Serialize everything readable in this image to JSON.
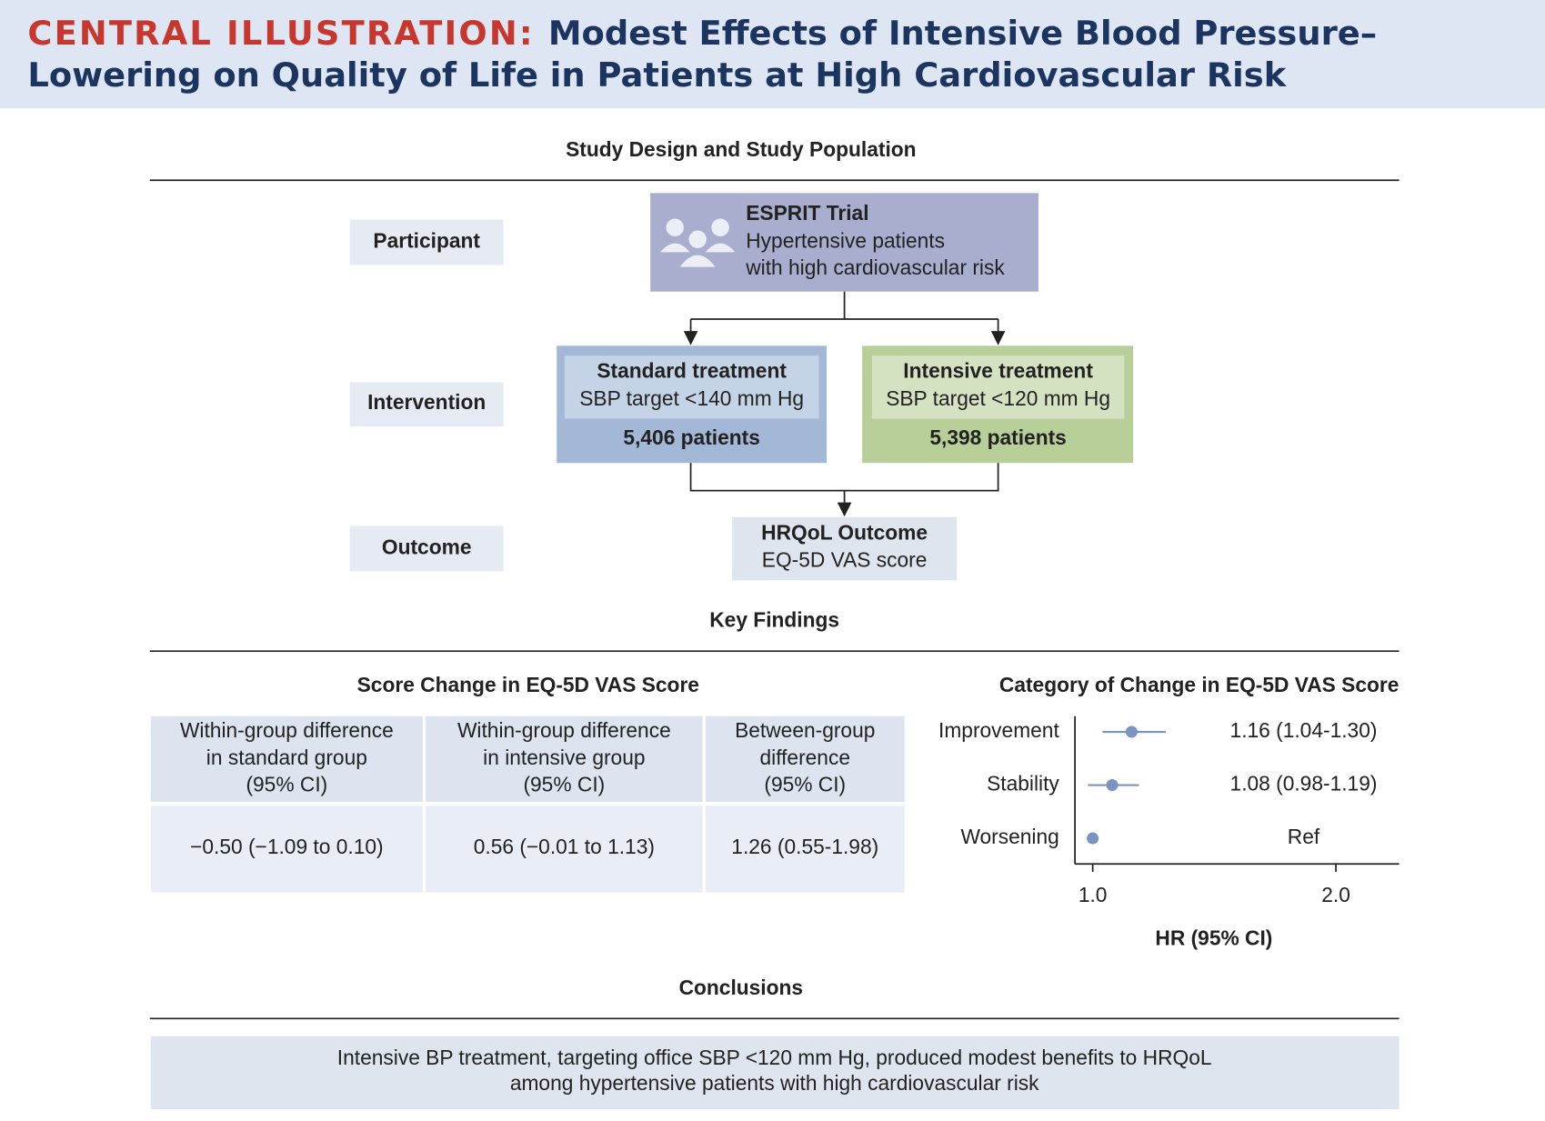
{
  "header": {
    "label": "CENTRAL ILLUSTRATION:",
    "title_lines": [
      "Modest Effects of Intensive Blood Pressure–",
      "Lowering on Quality of Life in Patients at High Cardiovascular Risk"
    ]
  },
  "study_design": {
    "heading": "Study Design and Study Population",
    "rows": [
      "Participant",
      "Intervention",
      "Outcome"
    ],
    "trial": {
      "name": "ESPRIT Trial",
      "lines": [
        "Hypertensive patients",
        "with high cardiovascular risk"
      ]
    },
    "standard": {
      "title": "Standard treatment",
      "target": "SBP target <140 mm Hg",
      "patients": "5,406 patients"
    },
    "intensive": {
      "title": "Intensive treatment",
      "target": "SBP target <120 mm Hg",
      "patients": "5,398 patients"
    },
    "outcome": {
      "title": "HRQoL Outcome",
      "subtitle": "EQ-5D VAS score"
    }
  },
  "key_findings": {
    "heading": "Key Findings",
    "table": {
      "title": "Score Change in EQ-5D VAS Score",
      "header": [
        [
          "Within-group difference",
          "in standard group",
          "(95% CI)"
        ],
        [
          "Within-group difference",
          "in intensive group",
          "(95% CI)"
        ],
        [
          "Between-group",
          "difference",
          "(95% CI)"
        ]
      ],
      "row": [
        "−0.50 (−1.09 to 0.10)",
        "0.56 (−0.01 to 1.13)",
        "1.26 (0.55-1.98)"
      ]
    }
  },
  "chart_data": {
    "type": "forest",
    "title": "Category of Change in EQ-5D VAS Score",
    "categories": [
      "Improvement",
      "Stability",
      "Worsening"
    ],
    "values": [
      1.16,
      1.08,
      1
    ],
    "lower": [
      1.04,
      0.98,
      null
    ],
    "upper": [
      1.3,
      1.19,
      null
    ],
    "value_labels": [
      "1.16 (1.04-1.30)",
      "1.08 (0.98-1.19)",
      "Ref"
    ],
    "xlim": [
      0.927,
      2.26
    ],
    "xticks": [
      {
        "value": 1,
        "label": "1.0"
      },
      {
        "value": 2,
        "label": "2.0"
      }
    ],
    "xlabel": "HR (95% CI)",
    "color": "#7b93c0"
  },
  "conclusions": {
    "heading": "Conclusions",
    "lines": [
      "Intensive BP treatment, targeting office SBP <120 mm Hg, produced modest benefits to HRQoL",
      "among hypertensive patients with high cardiovascular risk"
    ]
  }
}
